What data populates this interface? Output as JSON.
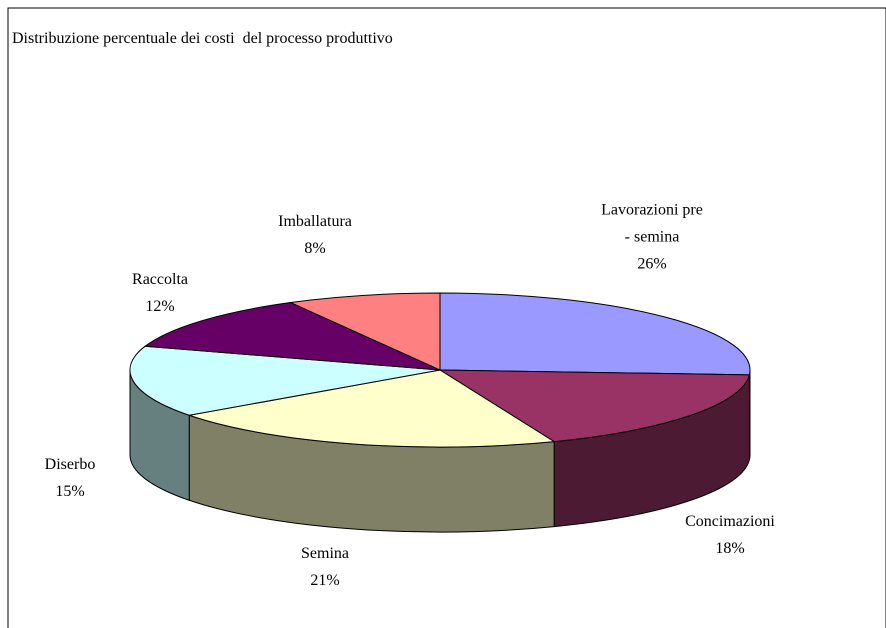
{
  "chart_data": {
    "type": "pie",
    "title": "Distribuzione percentuale dei costi  del processo produttivo",
    "categories": [
      "Lavorazioni pre - semina",
      "Concimazioni",
      "Semina",
      "Diserbo",
      "Raccolta",
      "Imballatura"
    ],
    "values": [
      26,
      18,
      21,
      15,
      12,
      8
    ],
    "value_labels": [
      "26%",
      "18%",
      "21%",
      "15%",
      "12%",
      "8%"
    ],
    "colors": [
      "#9999ff",
      "#993366",
      "#ffffcc",
      "#ccffff",
      "#660066",
      "#ff8080"
    ]
  }
}
